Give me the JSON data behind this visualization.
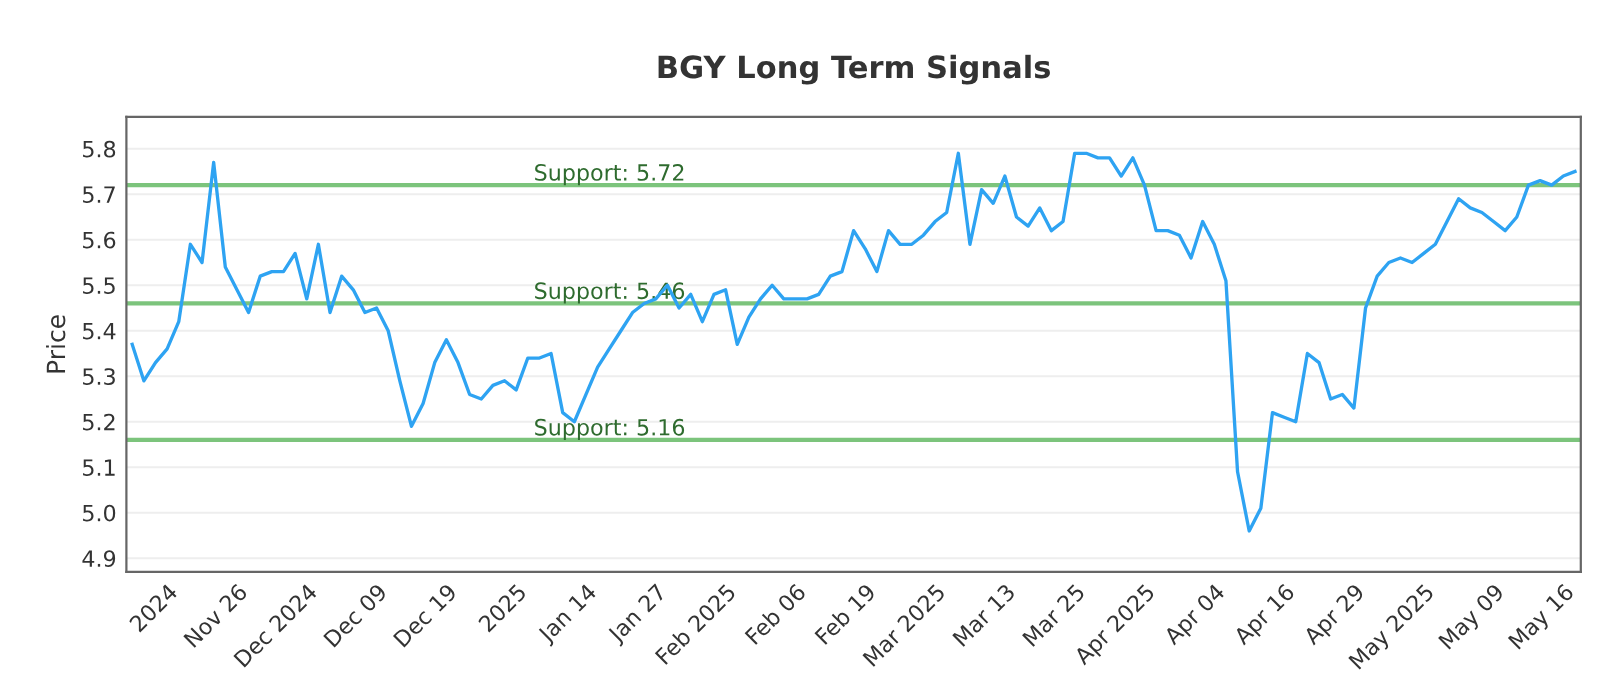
{
  "chart_data": {
    "type": "line",
    "title": "BGY Long Term Signals",
    "ylabel": "Price",
    "categories": [
      null,
      null,
      null,
      "2024",
      null,
      null,
      null,
      null,
      null,
      "Nov 26",
      null,
      null,
      null,
      null,
      null,
      "Dec 2024",
      null,
      null,
      null,
      null,
      null,
      "Dec 09",
      null,
      null,
      null,
      null,
      null,
      "Dec 19",
      null,
      null,
      null,
      null,
      null,
      "2025",
      null,
      null,
      null,
      null,
      null,
      "Jan 14",
      null,
      null,
      null,
      null,
      null,
      "Jan 27",
      null,
      null,
      null,
      null,
      null,
      "Feb 2025",
      null,
      null,
      null,
      null,
      null,
      "Feb 06",
      null,
      null,
      null,
      null,
      null,
      "Feb 19",
      null,
      null,
      null,
      null,
      null,
      "Mar 2025",
      null,
      null,
      null,
      null,
      null,
      "Mar 13",
      null,
      null,
      null,
      null,
      null,
      "Mar 25",
      null,
      null,
      null,
      null,
      null,
      "Apr 2025",
      null,
      null,
      null,
      null,
      null,
      "Apr 04",
      null,
      null,
      null,
      null,
      null,
      "Apr 16",
      null,
      null,
      null,
      null,
      null,
      "Apr 29",
      null,
      null,
      null,
      null,
      null,
      "May 2025",
      null,
      null,
      null,
      null,
      null,
      "May 09",
      null,
      null,
      null,
      null,
      null,
      "May 16",
      null
    ],
    "series": [
      {
        "color": "#2ea3f2",
        "values": [
          5.37,
          5.29,
          5.33,
          5.36,
          5.42,
          5.59,
          5.55,
          5.77,
          5.54,
          5.49,
          5.44,
          5.52,
          5.53,
          5.53,
          5.57,
          5.47,
          5.59,
          5.44,
          5.52,
          5.49,
          5.44,
          5.45,
          5.4,
          5.29,
          5.19,
          5.24,
          5.33,
          5.38,
          5.33,
          5.26,
          5.25,
          5.28,
          5.29,
          5.27,
          5.34,
          5.34,
          5.35,
          5.22,
          5.2,
          5.26,
          5.32,
          5.36,
          5.4,
          5.44,
          5.46,
          5.47,
          5.5,
          5.45,
          5.48,
          5.42,
          5.48,
          5.49,
          5.37,
          5.43,
          5.47,
          5.5,
          5.47,
          5.47,
          5.47,
          5.48,
          5.52,
          5.53,
          5.62,
          5.58,
          5.53,
          5.62,
          5.59,
          5.59,
          5.61,
          5.64,
          5.66,
          5.79,
          5.59,
          5.71,
          5.68,
          5.74,
          5.65,
          5.63,
          5.67,
          5.62,
          5.64,
          5.79,
          5.79,
          5.78,
          5.78,
          5.74,
          5.78,
          5.72,
          5.62,
          5.62,
          5.61,
          5.56,
          5.64,
          5.59,
          5.51,
          5.09,
          4.96,
          5.01,
          5.22,
          5.21,
          5.2,
          5.35,
          5.33,
          5.25,
          5.26,
          5.23,
          5.45,
          5.52,
          5.55,
          5.56,
          5.55,
          5.57,
          5.59,
          5.64,
          5.69,
          5.67,
          5.66,
          5.64,
          5.62,
          5.65,
          5.72,
          5.73,
          5.72,
          5.74,
          5.75
        ]
      }
    ],
    "ylim": [
      4.87,
      5.87
    ],
    "yticks": [
      4.9,
      {
        "value": 5,
        "label": "5.0"
      },
      5.1,
      5.2,
      5.3,
      5.4,
      5.5,
      5.6,
      5.7,
      5.8
    ],
    "grid": "y",
    "marker": "none",
    "line_style": "solid",
    "ref_lines": [
      {
        "axis": "y",
        "value": 5.72,
        "label": "Support: 5.72",
        "color": "#7cc47c"
      },
      {
        "axis": "y",
        "value": 5.46,
        "label": "Support: 5.46",
        "color": "#7cc47c"
      },
      {
        "axis": "y",
        "value": 5.16,
        "label": "Support: 5.16",
        "color": "#7cc47c"
      }
    ]
  }
}
